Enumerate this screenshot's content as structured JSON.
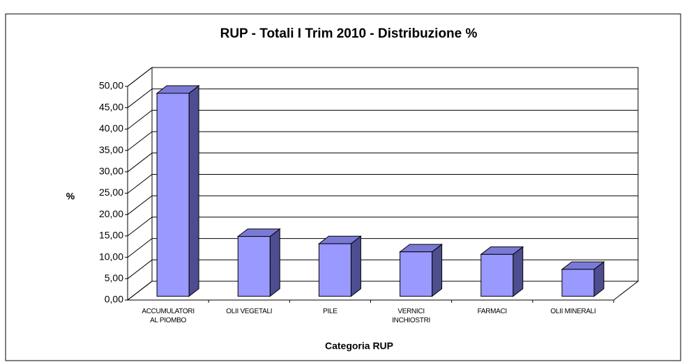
{
  "chart_data": {
    "type": "bar3d",
    "title": "RUP - Totali  I Trim 2010 -  Distribuzione %",
    "x_label": "Categoria RUP",
    "y_label": "%",
    "categories": [
      "ACCUMULATORI\nAL PIOMBO",
      "OLII VEGETALI",
      "PILE",
      "VERNICI\nINCHIOSTRI",
      "FARMACI",
      "OLII MINERALI"
    ],
    "values": [
      47.5,
      14.0,
      12.3,
      10.4,
      9.8,
      6.3
    ],
    "color": "#9999ff",
    "ylim": [
      0,
      50
    ],
    "yticks": [
      {
        "value": 0,
        "label": "0,00"
      },
      {
        "value": 5,
        "label": "5,00"
      },
      {
        "value": 10,
        "label": "10,00"
      },
      {
        "value": 15,
        "label": "15,00"
      },
      {
        "value": 20,
        "label": "20,00"
      },
      {
        "value": 25,
        "label": "25,00"
      },
      {
        "value": 30,
        "label": "30,00"
      },
      {
        "value": 35,
        "label": "35,00"
      },
      {
        "value": 40,
        "label": "40,00"
      },
      {
        "value": 45,
        "label": "45,00"
      },
      {
        "value": 50,
        "label": "50,00"
      }
    ],
    "grid": true
  }
}
